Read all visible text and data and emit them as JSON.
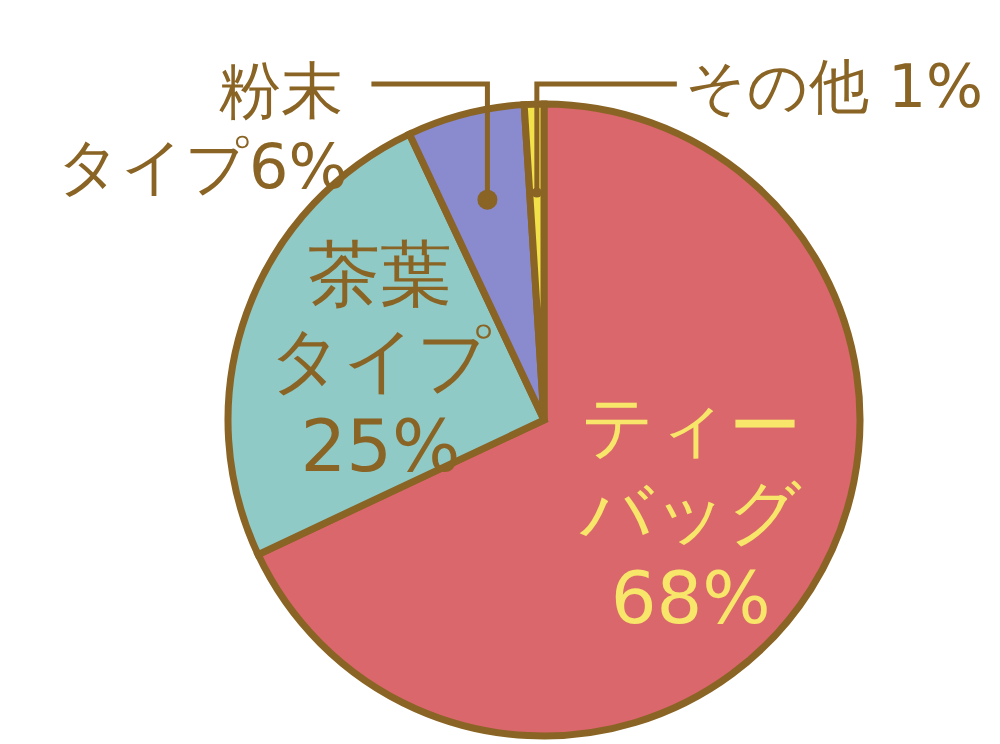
{
  "chart_data": {
    "type": "pie",
    "categories": [
      "ティーバッグ",
      "茶葉タイプ",
      "粉末タイプ",
      "その他"
    ],
    "values": [
      68,
      25,
      6,
      1
    ],
    "colors": [
      "#d9676b",
      "#8fcac7",
      "#8a8acf",
      "#f3e14a"
    ],
    "value_labels": [
      "68%",
      "25%",
      "6%",
      "1%"
    ],
    "legend": false
  }
}
